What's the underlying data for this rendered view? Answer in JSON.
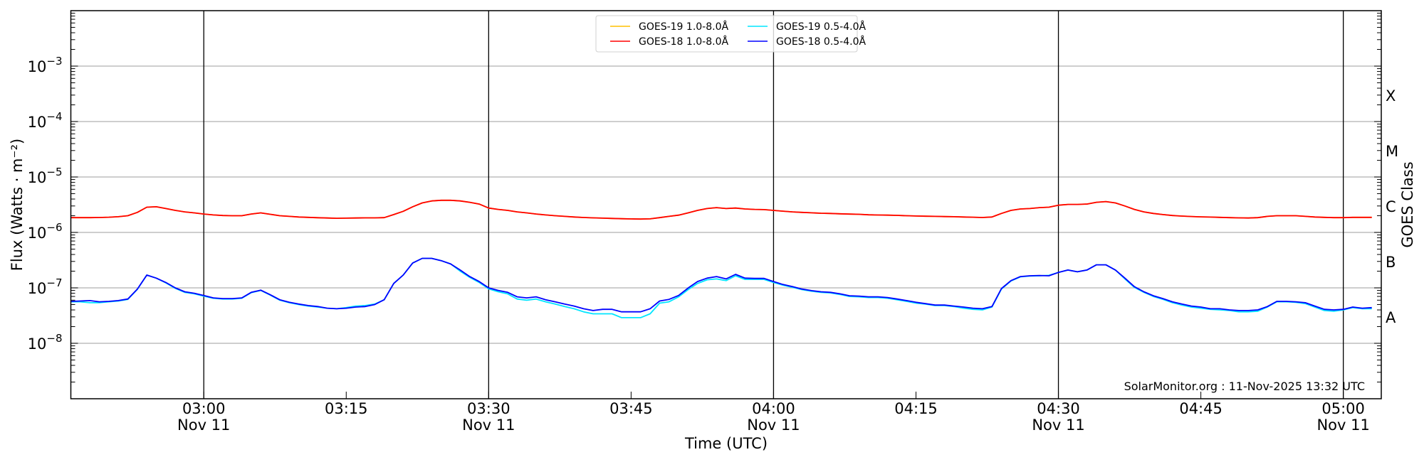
{
  "chart_data": {
    "type": "line",
    "xlabel": "Time (UTC)",
    "ylabel": "Flux (Watts · m⁻²)",
    "ylabel_right": "GOES Class",
    "yscale": "log",
    "ylim": [
      1e-09,
      0.01
    ],
    "xlim": [
      "02:46",
      "05:04"
    ],
    "x_date_label": "Nov 11",
    "x_ticks": [
      {
        "label": "03:00",
        "date": "Nov 11"
      },
      {
        "label": "03:15",
        "date": ""
      },
      {
        "label": "03:30",
        "date": "Nov 11"
      },
      {
        "label": "03:45",
        "date": ""
      },
      {
        "label": "04:00",
        "date": "Nov 11"
      },
      {
        "label": "04:15",
        "date": ""
      },
      {
        "label": "04:30",
        "date": "Nov 11"
      },
      {
        "label": "04:45",
        "date": ""
      },
      {
        "label": "05:00",
        "date": "Nov 11"
      }
    ],
    "y_ticks": [
      {
        "exp": -3,
        "label": "10",
        "sup": "−3"
      },
      {
        "exp": -4,
        "label": "10",
        "sup": "−4"
      },
      {
        "exp": -5,
        "label": "10",
        "sup": "−5"
      },
      {
        "exp": -6,
        "label": "10",
        "sup": "−6"
      },
      {
        "exp": -7,
        "label": "10",
        "sup": "−7"
      },
      {
        "exp": -8,
        "label": "10",
        "sup": "−8"
      }
    ],
    "goes_classes": [
      {
        "label": "X",
        "flux": 0.0003
      },
      {
        "label": "M",
        "flux": 3e-05
      },
      {
        "label": "C",
        "flux": 3e-06
      },
      {
        "label": "B",
        "flux": 3e-07
      },
      {
        "label": "A",
        "flux": 3e-08
      }
    ],
    "grid": "horizontal gray at decades; vertical black every 30 min",
    "legend_placement": "top-center",
    "annotation": "SolarMonitor.org : 11-Nov-2025 13:32 UTC",
    "x": [
      "02:46",
      "02:47",
      "02:48",
      "02:49",
      "02:50",
      "02:51",
      "02:52",
      "02:53",
      "02:54",
      "02:55",
      "02:56",
      "02:57",
      "02:58",
      "02:59",
      "03:00",
      "03:01",
      "03:02",
      "03:03",
      "03:04",
      "03:05",
      "03:06",
      "03:07",
      "03:08",
      "03:09",
      "03:10",
      "03:11",
      "03:12",
      "03:13",
      "03:14",
      "03:15",
      "03:16",
      "03:17",
      "03:18",
      "03:19",
      "03:20",
      "03:21",
      "03:22",
      "03:23",
      "03:24",
      "03:25",
      "03:26",
      "03:27",
      "03:28",
      "03:29",
      "03:30",
      "03:31",
      "03:32",
      "03:33",
      "03:34",
      "03:35",
      "03:36",
      "03:37",
      "03:38",
      "03:39",
      "03:40",
      "03:41",
      "03:42",
      "03:43",
      "03:44",
      "03:45",
      "03:46",
      "03:47",
      "03:48",
      "03:49",
      "03:50",
      "03:51",
      "03:52",
      "03:53",
      "03:54",
      "03:55",
      "03:56",
      "03:57",
      "03:58",
      "03:59",
      "04:00",
      "04:01",
      "04:02",
      "04:03",
      "04:04",
      "04:05",
      "04:06",
      "04:07",
      "04:08",
      "04:09",
      "04:10",
      "04:11",
      "04:12",
      "04:13",
      "04:14",
      "04:15",
      "04:16",
      "04:17",
      "04:18",
      "04:19",
      "04:20",
      "04:21",
      "04:22",
      "04:23",
      "04:24",
      "04:25",
      "04:26",
      "04:27",
      "04:28",
      "04:29",
      "04:30",
      "04:31",
      "04:32",
      "04:33",
      "04:34",
      "04:35",
      "04:36",
      "04:37",
      "04:38",
      "04:39",
      "04:40",
      "04:41",
      "04:42",
      "04:43",
      "04:44",
      "04:45",
      "04:46",
      "04:47",
      "04:48",
      "04:49",
      "04:50",
      "04:51",
      "04:52",
      "04:53",
      "04:54",
      "04:55",
      "04:56",
      "04:57",
      "04:58",
      "04:59",
      "05:00",
      "05:01",
      "05:02",
      "05:03"
    ],
    "series": [
      {
        "name": "GOES-19 1.0-8.0Å",
        "color": "#ffc000",
        "values": [
          1.85e-06,
          1.85e-06,
          1.85e-06,
          1.86e-06,
          1.88e-06,
          1.92e-06,
          2e-06,
          2.3e-06,
          2.85e-06,
          2.9e-06,
          2.7e-06,
          2.5e-06,
          2.35e-06,
          2.25e-06,
          2.15e-06,
          2.07e-06,
          2.02e-06,
          2e-06,
          2e-06,
          2.15e-06,
          2.25e-06,
          2.12e-06,
          2e-06,
          1.95e-06,
          1.9e-06,
          1.87e-06,
          1.84e-06,
          1.82e-06,
          1.8e-06,
          1.81e-06,
          1.82e-06,
          1.83e-06,
          1.83e-06,
          1.85e-06,
          2.1e-06,
          2.4e-06,
          2.9e-06,
          3.4e-06,
          3.7e-06,
          3.8e-06,
          3.8e-06,
          3.7e-06,
          3.5e-06,
          3.25e-06,
          2.75e-06,
          2.6e-06,
          2.5e-06,
          2.35e-06,
          2.25e-06,
          2.15e-06,
          2.07e-06,
          2e-06,
          1.95e-06,
          1.9e-06,
          1.86e-06,
          1.83e-06,
          1.81e-06,
          1.79e-06,
          1.77e-06,
          1.75e-06,
          1.74e-06,
          1.76e-06,
          1.85e-06,
          1.95e-06,
          2.05e-06,
          2.25e-06,
          2.5e-06,
          2.7e-06,
          2.8e-06,
          2.7e-06,
          2.75e-06,
          2.65e-06,
          2.6e-06,
          2.58e-06,
          2.5e-06,
          2.42e-06,
          2.35e-06,
          2.3e-06,
          2.26e-06,
          2.22e-06,
          2.2e-06,
          2.17e-06,
          2.14e-06,
          2.12e-06,
          2.08e-06,
          2.06e-06,
          2.05e-06,
          2.03e-06,
          2e-06,
          1.98e-06,
          1.96e-06,
          1.95e-06,
          1.93e-06,
          1.92e-06,
          1.9e-06,
          1.88e-06,
          1.86e-06,
          1.9e-06,
          2.2e-06,
          2.5e-06,
          2.65e-06,
          2.7e-06,
          2.8e-06,
          2.85e-06,
          3.1e-06,
          3.2e-06,
          3.2e-06,
          3.25e-06,
          3.5e-06,
          3.6e-06,
          3.4e-06,
          3e-06,
          2.6e-06,
          2.35e-06,
          2.2e-06,
          2.1e-06,
          2.02e-06,
          1.97e-06,
          1.94e-06,
          1.91e-06,
          1.89e-06,
          1.87e-06,
          1.85e-06,
          1.83e-06,
          1.82e-06,
          1.85e-06,
          1.95e-06,
          2e-06,
          2e-06,
          2e-06,
          1.95e-06,
          1.9e-06,
          1.87e-06,
          1.85e-06,
          1.85e-06,
          1.87e-06,
          1.87e-06,
          1.87e-06
        ]
      },
      {
        "name": "GOES-19 0.5-4.0Å",
        "color": "#00e5ff",
        "values": [
          5.6e-08,
          5.6e-08,
          5.4e-08,
          5.4e-08,
          5.6e-08,
          5.8e-08,
          6.2e-08,
          9.4e-08,
          1.7e-07,
          1.5e-07,
          1.23e-07,
          9.8e-08,
          8.3e-08,
          7.8e-08,
          7.1e-08,
          6.5e-08,
          6.3e-08,
          6.3e-08,
          6.5e-08,
          8.2e-08,
          9e-08,
          7.4e-08,
          6e-08,
          5.4e-08,
          5e-08,
          4.7e-08,
          4.5e-08,
          4.3e-08,
          4.2e-08,
          4.4e-08,
          4.7e-08,
          4.8e-08,
          5.1e-08,
          6.1e-08,
          1.2e-07,
          1.7e-07,
          2.8e-07,
          3.4e-07,
          3.4e-07,
          3.1e-07,
          2.7e-07,
          2e-07,
          1.55e-07,
          1.25e-07,
          9.6e-08,
          8.5e-08,
          7.8e-08,
          6.3e-08,
          6e-08,
          6.3e-08,
          5.6e-08,
          5.1e-08,
          4.6e-08,
          4.2e-08,
          3.7e-08,
          3.4e-08,
          3.4e-08,
          3.4e-08,
          2.9e-08,
          2.9e-08,
          2.9e-08,
          3.4e-08,
          5.3e-08,
          5.6e-08,
          6.9e-08,
          9.3e-08,
          1.2e-07,
          1.4e-07,
          1.45e-07,
          1.35e-07,
          1.65e-07,
          1.42e-07,
          1.42e-07,
          1.42e-07,
          1.25e-07,
          1.12e-07,
          1.02e-07,
          9.3e-08,
          8.7e-08,
          8.3e-08,
          8.1e-08,
          7.6e-08,
          7e-08,
          6.9e-08,
          6.7e-08,
          6.7e-08,
          6.5e-08,
          6.1e-08,
          5.7e-08,
          5.3e-08,
          5.1e-08,
          4.8e-08,
          4.8e-08,
          4.6e-08,
          4.3e-08,
          4.1e-08,
          4e-08,
          4.5e-08,
          9.5e-08,
          1.33e-07,
          1.58e-07,
          1.63e-07,
          1.65e-07,
          1.68e-07,
          1.9e-07,
          2.1e-07,
          1.95e-07,
          2.1e-07,
          2.6e-07,
          2.6e-07,
          2.1e-07,
          1.45e-07,
          1.02e-07,
          8.3e-08,
          7e-08,
          6.2e-08,
          5.4e-08,
          4.9e-08,
          4.5e-08,
          4.3e-08,
          4.1e-08,
          4e-08,
          3.9e-08,
          3.7e-08,
          3.7e-08,
          3.8e-08,
          4.5e-08,
          5.6e-08,
          5.6e-08,
          5.5e-08,
          5.2e-08,
          4.5e-08,
          3.9e-08,
          3.8e-08,
          4e-08,
          4.4e-08,
          4.2e-08,
          4.2e-08
        ]
      },
      {
        "name": "GOES-18 1.0-8.0Å",
        "color": "#ff0000",
        "values": [
          1.85e-06,
          1.85e-06,
          1.85e-06,
          1.86e-06,
          1.88e-06,
          1.92e-06,
          2e-06,
          2.3e-06,
          2.85e-06,
          2.9e-06,
          2.7e-06,
          2.5e-06,
          2.35e-06,
          2.25e-06,
          2.15e-06,
          2.07e-06,
          2.02e-06,
          2e-06,
          2e-06,
          2.15e-06,
          2.25e-06,
          2.12e-06,
          2e-06,
          1.95e-06,
          1.9e-06,
          1.87e-06,
          1.84e-06,
          1.82e-06,
          1.8e-06,
          1.81e-06,
          1.82e-06,
          1.83e-06,
          1.83e-06,
          1.85e-06,
          2.1e-06,
          2.4e-06,
          2.9e-06,
          3.4e-06,
          3.7e-06,
          3.8e-06,
          3.8e-06,
          3.7e-06,
          3.5e-06,
          3.25e-06,
          2.75e-06,
          2.6e-06,
          2.5e-06,
          2.35e-06,
          2.25e-06,
          2.15e-06,
          2.07e-06,
          2e-06,
          1.95e-06,
          1.9e-06,
          1.86e-06,
          1.83e-06,
          1.81e-06,
          1.79e-06,
          1.77e-06,
          1.75e-06,
          1.74e-06,
          1.76e-06,
          1.85e-06,
          1.95e-06,
          2.05e-06,
          2.25e-06,
          2.5e-06,
          2.7e-06,
          2.8e-06,
          2.7e-06,
          2.75e-06,
          2.65e-06,
          2.6e-06,
          2.58e-06,
          2.5e-06,
          2.42e-06,
          2.35e-06,
          2.3e-06,
          2.26e-06,
          2.22e-06,
          2.2e-06,
          2.17e-06,
          2.14e-06,
          2.12e-06,
          2.08e-06,
          2.06e-06,
          2.05e-06,
          2.03e-06,
          2e-06,
          1.98e-06,
          1.96e-06,
          1.95e-06,
          1.93e-06,
          1.92e-06,
          1.9e-06,
          1.88e-06,
          1.86e-06,
          1.9e-06,
          2.2e-06,
          2.5e-06,
          2.65e-06,
          2.7e-06,
          2.8e-06,
          2.85e-06,
          3.1e-06,
          3.2e-06,
          3.2e-06,
          3.25e-06,
          3.5e-06,
          3.6e-06,
          3.4e-06,
          3e-06,
          2.6e-06,
          2.35e-06,
          2.2e-06,
          2.1e-06,
          2.02e-06,
          1.97e-06,
          1.94e-06,
          1.91e-06,
          1.89e-06,
          1.87e-06,
          1.85e-06,
          1.83e-06,
          1.82e-06,
          1.85e-06,
          1.95e-06,
          2e-06,
          2e-06,
          2e-06,
          1.95e-06,
          1.9e-06,
          1.87e-06,
          1.85e-06,
          1.85e-06,
          1.87e-06,
          1.87e-06,
          1.87e-06
        ]
      },
      {
        "name": "GOES-18 0.5-4.0Å",
        "color": "#0000ff",
        "values": [
          5.7e-08,
          5.8e-08,
          5.9e-08,
          5.6e-08,
          5.7e-08,
          5.9e-08,
          6.3e-08,
          9.5e-08,
          1.7e-07,
          1.5e-07,
          1.25e-07,
          1e-07,
          8.5e-08,
          8e-08,
          7.3e-08,
          6.6e-08,
          6.4e-08,
          6.4e-08,
          6.6e-08,
          8.3e-08,
          9.1e-08,
          7.5e-08,
          6.1e-08,
          5.5e-08,
          5.1e-08,
          4.8e-08,
          4.6e-08,
          4.3e-08,
          4.2e-08,
          4.3e-08,
          4.5e-08,
          4.6e-08,
          5e-08,
          6.1e-08,
          1.2e-07,
          1.7e-07,
          2.8e-07,
          3.4e-07,
          3.4e-07,
          3.1e-07,
          2.7e-07,
          2.1e-07,
          1.6e-07,
          1.3e-07,
          1e-07,
          9e-08,
          8.3e-08,
          6.9e-08,
          6.6e-08,
          6.9e-08,
          6.1e-08,
          5.6e-08,
          5.1e-08,
          4.7e-08,
          4.2e-08,
          3.9e-08,
          4.1e-08,
          4.1e-08,
          3.7e-08,
          3.7e-08,
          3.7e-08,
          4.2e-08,
          5.8e-08,
          6.2e-08,
          7.3e-08,
          9.9e-08,
          1.3e-07,
          1.5e-07,
          1.6e-07,
          1.45e-07,
          1.75e-07,
          1.5e-07,
          1.48e-07,
          1.48e-07,
          1.3e-07,
          1.15e-07,
          1.05e-07,
          9.5e-08,
          8.9e-08,
          8.5e-08,
          8.3e-08,
          7.8e-08,
          7.2e-08,
          7.1e-08,
          6.9e-08,
          6.9e-08,
          6.7e-08,
          6.3e-08,
          5.9e-08,
          5.5e-08,
          5.2e-08,
          4.9e-08,
          4.9e-08,
          4.7e-08,
          4.5e-08,
          4.3e-08,
          4.2e-08,
          4.6e-08,
          9.7e-08,
          1.35e-07,
          1.6e-07,
          1.65e-07,
          1.67e-07,
          1.65e-07,
          1.9e-07,
          2.1e-07,
          1.95e-07,
          2.1e-07,
          2.6e-07,
          2.6e-07,
          2.1e-07,
          1.5e-07,
          1.05e-07,
          8.5e-08,
          7.2e-08,
          6.4e-08,
          5.6e-08,
          5.1e-08,
          4.7e-08,
          4.5e-08,
          4.2e-08,
          4.2e-08,
          4e-08,
          3.9e-08,
          3.9e-08,
          4e-08,
          4.6e-08,
          5.7e-08,
          5.7e-08,
          5.6e-08,
          5.4e-08,
          4.7e-08,
          4.1e-08,
          4e-08,
          4.1e-08,
          4.5e-08,
          4.3e-08,
          4.4e-08
        ]
      }
    ],
    "legend_order": [
      0,
      1,
      2,
      3
    ]
  }
}
